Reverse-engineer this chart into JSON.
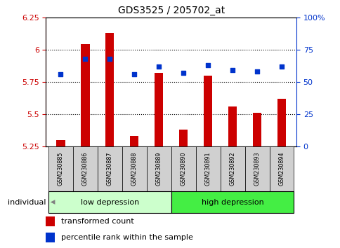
{
  "title": "GDS3525 / 205702_at",
  "samples": [
    "GSM230885",
    "GSM230886",
    "GSM230887",
    "GSM230888",
    "GSM230889",
    "GSM230890",
    "GSM230891",
    "GSM230892",
    "GSM230893",
    "GSM230894"
  ],
  "transformed_count": [
    5.3,
    6.04,
    6.13,
    5.33,
    5.82,
    5.38,
    5.8,
    5.56,
    5.51,
    5.62
  ],
  "percentile_rank": [
    56,
    68,
    68,
    56,
    62,
    57,
    63,
    59,
    58,
    62
  ],
  "ylim_left": [
    5.25,
    6.25
  ],
  "ylim_right": [
    0,
    100
  ],
  "yticks_left": [
    5.25,
    5.5,
    5.75,
    6.0,
    6.25
  ],
  "yticks_right": [
    0,
    25,
    50,
    75,
    100
  ],
  "ytick_labels_right": [
    "0",
    "25",
    "50",
    "75",
    "100%"
  ],
  "group_low_label": "low depression",
  "group_high_label": "high depression",
  "individual_label": "individual",
  "bar_color": "#cc0000",
  "dot_color": "#0033cc",
  "bar_base": 5.25,
  "legend_bar_label": "transformed count",
  "legend_dot_label": "percentile rank within the sample",
  "bg_color": "#ffffff",
  "plot_bg_color": "#ffffff",
  "tick_color_left": "#cc0000",
  "tick_color_right": "#0033cc",
  "group_low_bg": "#ccffcc",
  "group_high_bg": "#44ee44",
  "sample_bg": "#d0d0d0",
  "grid_dotted_color": "#000000",
  "title_fontsize": 10,
  "bar_width": 0.35
}
